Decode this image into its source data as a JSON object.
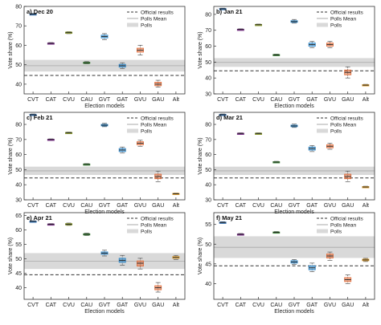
{
  "figure": {
    "categories": [
      "CVT",
      "CAT",
      "CVU",
      "CAU",
      "GVT",
      "GAT",
      "GVU",
      "GAU",
      "Alt"
    ],
    "xlabel": "Election models",
    "ylabel": "Vote share (%)",
    "legend": {
      "official": "Official results",
      "mean": "Polls Mean",
      "polls": "Polls",
      "placement": "top-right"
    },
    "colors": {
      "CVT": "#2e6fb4",
      "CAT": "#7a2a8a",
      "CVU": "#8a9a2a",
      "CAU": "#3f8a3a",
      "GVT": "#2f86c6",
      "GAT": "#2f86c6",
      "GVU": "#e07040",
      "GAU": "#e07040",
      "Alt": "#e0a030",
      "polls_band": "#d9d9d9",
      "official": "#333333",
      "mean": "#a8a8a8"
    }
  },
  "chart_data": [
    {
      "type": "box",
      "panel_label": "a) Dec 20",
      "ylim": [
        35,
        80
      ],
      "yticks": [
        40,
        50,
        60,
        70,
        80
      ],
      "official": 44.5,
      "polls_band": [
        46.5,
        52.5
      ],
      "polls_mean": 49.5,
      "series": [
        {
          "cat": "CVT",
          "median": 76.0,
          "q1": 75.8,
          "q3": 76.2,
          "wlo": 75.6,
          "whi": 76.4
        },
        {
          "cat": "CAT",
          "median": 61.0,
          "q1": 60.8,
          "q3": 61.2,
          "wlo": 60.6,
          "whi": 61.4
        },
        {
          "cat": "CVU",
          "median": 66.5,
          "q1": 66.3,
          "q3": 66.8,
          "wlo": 66.0,
          "whi": 67.0
        },
        {
          "cat": "CAU",
          "median": 51.0,
          "q1": 50.7,
          "q3": 51.3,
          "wlo": 50.5,
          "whi": 51.6
        },
        {
          "cat": "GVT",
          "median": 64.5,
          "q1": 63.8,
          "q3": 65.2,
          "wlo": 62.8,
          "whi": 66.0
        },
        {
          "cat": "GAT",
          "median": 49.5,
          "q1": 48.8,
          "q3": 50.2,
          "wlo": 48.0,
          "whi": 51.0
        },
        {
          "cat": "GVU",
          "median": 57.5,
          "q1": 56.5,
          "q3": 58.5,
          "wlo": 55.0,
          "whi": 60.0
        },
        {
          "cat": "GAU",
          "median": 40.0,
          "q1": 39.2,
          "q3": 41.0,
          "wlo": 38.5,
          "whi": 42.0
        },
        {
          "cat": "Alt",
          "median": 34.0,
          "q1": 33.8,
          "q3": 34.3,
          "wlo": 33.6,
          "whi": 34.5
        }
      ]
    },
    {
      "type": "box",
      "panel_label": "b) Jan 21",
      "ylim": [
        30,
        85
      ],
      "yticks": [
        30,
        40,
        50,
        60,
        70,
        80
      ],
      "official": 44.5,
      "polls_band": [
        47.0,
        52.5
      ],
      "polls_mean": 49.8,
      "series": [
        {
          "cat": "CVT",
          "median": 83.5,
          "q1": 83.3,
          "q3": 83.7,
          "wlo": 83.1,
          "whi": 83.9
        },
        {
          "cat": "CAT",
          "median": 70.5,
          "q1": 70.3,
          "q3": 70.7,
          "wlo": 70.1,
          "whi": 70.9
        },
        {
          "cat": "CVU",
          "median": 73.5,
          "q1": 73.3,
          "q3": 73.7,
          "wlo": 73.1,
          "whi": 73.9
        },
        {
          "cat": "CAU",
          "median": 54.5,
          "q1": 54.2,
          "q3": 54.8,
          "wlo": 54.0,
          "whi": 55.0
        },
        {
          "cat": "GVT",
          "median": 75.5,
          "q1": 75.0,
          "q3": 76.0,
          "wlo": 74.5,
          "whi": 76.8
        },
        {
          "cat": "GAT",
          "median": 61.0,
          "q1": 60.0,
          "q3": 62.0,
          "wlo": 59.0,
          "whi": 63.0
        },
        {
          "cat": "GVU",
          "median": 61.0,
          "q1": 60.0,
          "q3": 62.0,
          "wlo": 59.0,
          "whi": 63.0
        },
        {
          "cat": "GAU",
          "median": 43.5,
          "q1": 42.0,
          "q3": 45.0,
          "wlo": 40.0,
          "whi": 47.0
        },
        {
          "cat": "Alt",
          "median": 35.5,
          "q1": 35.3,
          "q3": 35.8,
          "wlo": 35.1,
          "whi": 36.0
        }
      ]
    },
    {
      "type": "box",
      "panel_label": "c) Feb 21",
      "ylim": [
        30,
        88
      ],
      "yticks": [
        30,
        40,
        50,
        60,
        70,
        80
      ],
      "official": 44.5,
      "polls_band": [
        46.5,
        52.0
      ],
      "polls_mean": 49.2,
      "series": [
        {
          "cat": "CVT",
          "median": 86.5,
          "q1": 86.3,
          "q3": 86.7,
          "wlo": 86.1,
          "whi": 86.9
        },
        {
          "cat": "CAT",
          "median": 70.0,
          "q1": 69.8,
          "q3": 70.2,
          "wlo": 69.6,
          "whi": 70.4
        },
        {
          "cat": "CVU",
          "median": 74.5,
          "q1": 74.3,
          "q3": 74.7,
          "wlo": 74.1,
          "whi": 74.9
        },
        {
          "cat": "CAU",
          "median": 53.5,
          "q1": 53.2,
          "q3": 53.8,
          "wlo": 53.0,
          "whi": 54.0
        },
        {
          "cat": "GVT",
          "median": 79.5,
          "q1": 79.0,
          "q3": 80.0,
          "wlo": 78.5,
          "whi": 80.7
        },
        {
          "cat": "GAT",
          "median": 63.0,
          "q1": 62.0,
          "q3": 64.0,
          "wlo": 61.0,
          "whi": 65.0
        },
        {
          "cat": "GVU",
          "median": 67.5,
          "q1": 66.5,
          "q3": 68.5,
          "wlo": 65.5,
          "whi": 69.5
        },
        {
          "cat": "GAU",
          "median": 45.5,
          "q1": 44.0,
          "q3": 47.0,
          "wlo": 42.0,
          "whi": 49.0
        },
        {
          "cat": "Alt",
          "median": 34.0,
          "q1": 33.8,
          "q3": 34.3,
          "wlo": 33.6,
          "whi": 34.5
        }
      ]
    },
    {
      "type": "box",
      "panel_label": "d) Mar 21",
      "ylim": [
        30,
        88
      ],
      "yticks": [
        30,
        40,
        50,
        60,
        70,
        80
      ],
      "official": 44.5,
      "polls_band": [
        46.5,
        52.0
      ],
      "polls_mean": 49.2,
      "series": [
        {
          "cat": "CVT",
          "median": 86.5,
          "q1": 86.3,
          "q3": 86.7,
          "wlo": 86.1,
          "whi": 86.9
        },
        {
          "cat": "CAT",
          "median": 74.0,
          "q1": 73.8,
          "q3": 74.2,
          "wlo": 73.6,
          "whi": 74.4
        },
        {
          "cat": "CVU",
          "median": 74.0,
          "q1": 73.8,
          "q3": 74.2,
          "wlo": 73.6,
          "whi": 74.4
        },
        {
          "cat": "CAU",
          "median": 55.0,
          "q1": 54.7,
          "q3": 55.3,
          "wlo": 54.5,
          "whi": 55.5
        },
        {
          "cat": "GVT",
          "median": 79.0,
          "q1": 78.5,
          "q3": 79.5,
          "wlo": 78.0,
          "whi": 80.2
        },
        {
          "cat": "GAT",
          "median": 64.0,
          "q1": 63.0,
          "q3": 65.0,
          "wlo": 62.0,
          "whi": 66.0
        },
        {
          "cat": "GVU",
          "median": 65.5,
          "q1": 64.5,
          "q3": 66.5,
          "wlo": 63.5,
          "whi": 67.5
        },
        {
          "cat": "GAU",
          "median": 45.5,
          "q1": 44.0,
          "q3": 47.0,
          "wlo": 42.0,
          "whi": 49.0
        },
        {
          "cat": "Alt",
          "median": 38.5,
          "q1": 38.3,
          "q3": 38.8,
          "wlo": 38.1,
          "whi": 39.0
        }
      ]
    },
    {
      "type": "box",
      "panel_label": "e) Apr 21",
      "ylim": [
        36,
        66
      ],
      "yticks": [
        40,
        45,
        50,
        55,
        60,
        65
      ],
      "official": 44.5,
      "polls_band": [
        46.5,
        52.0
      ],
      "polls_mean": 49.2,
      "series": [
        {
          "cat": "CVT",
          "median": 63.0,
          "q1": 62.9,
          "q3": 63.1,
          "wlo": 62.8,
          "whi": 63.2
        },
        {
          "cat": "CAT",
          "median": 62.0,
          "q1": 61.9,
          "q3": 62.1,
          "wlo": 61.8,
          "whi": 62.2
        },
        {
          "cat": "CVU",
          "median": 62.0,
          "q1": 61.8,
          "q3": 62.2,
          "wlo": 61.6,
          "whi": 62.4
        },
        {
          "cat": "CAU",
          "median": 58.5,
          "q1": 58.3,
          "q3": 58.7,
          "wlo": 58.1,
          "whi": 58.9
        },
        {
          "cat": "GVT",
          "median": 52.0,
          "q1": 51.6,
          "q3": 52.4,
          "wlo": 51.0,
          "whi": 53.0
        },
        {
          "cat": "GAT",
          "median": 49.5,
          "q1": 48.8,
          "q3": 50.2,
          "wlo": 47.8,
          "whi": 51.2
        },
        {
          "cat": "GVU",
          "median": 48.5,
          "q1": 47.5,
          "q3": 49.3,
          "wlo": 46.5,
          "whi": 50.2
        },
        {
          "cat": "GAU",
          "median": 40.0,
          "q1": 39.3,
          "q3": 40.7,
          "wlo": 38.5,
          "whi": 41.8
        },
        {
          "cat": "Alt",
          "median": 50.5,
          "q1": 50.2,
          "q3": 50.8,
          "wlo": 49.8,
          "whi": 51.2
        }
      ]
    },
    {
      "type": "box",
      "panel_label": "f) May 21",
      "ylim": [
        36,
        58
      ],
      "yticks": [
        40,
        45,
        50,
        55
      ],
      "official": 44.5,
      "polls_band": [
        46.5,
        52.0
      ],
      "polls_mean": 49.2,
      "series": [
        {
          "cat": "CVT",
          "median": 55.5,
          "q1": 55.4,
          "q3": 55.6,
          "wlo": 55.3,
          "whi": 55.7
        },
        {
          "cat": "CAT",
          "median": 52.5,
          "q1": 52.4,
          "q3": 52.6,
          "wlo": 52.3,
          "whi": 52.7
        },
        {
          "cat": "CVU",
          "median": 60.0,
          "q1": 59.9,
          "q3": 60.1,
          "wlo": 59.8,
          "whi": 60.2
        },
        {
          "cat": "CAU",
          "median": 53.0,
          "q1": 52.9,
          "q3": 53.1,
          "wlo": 52.8,
          "whi": 53.2
        },
        {
          "cat": "GVT",
          "median": 45.5,
          "q1": 45.2,
          "q3": 45.8,
          "wlo": 44.9,
          "whi": 46.1
        },
        {
          "cat": "GAT",
          "median": 44.0,
          "q1": 43.5,
          "q3": 44.5,
          "wlo": 43.0,
          "whi": 45.2
        },
        {
          "cat": "GVU",
          "median": 47.0,
          "q1": 46.5,
          "q3": 47.5,
          "wlo": 45.9,
          "whi": 48.0
        },
        {
          "cat": "GAU",
          "median": 41.0,
          "q1": 40.5,
          "q3": 41.5,
          "wlo": 40.0,
          "whi": 42.2
        },
        {
          "cat": "Alt",
          "median": 46.0,
          "q1": 45.8,
          "q3": 46.2,
          "wlo": 45.6,
          "whi": 46.4
        }
      ]
    }
  ]
}
